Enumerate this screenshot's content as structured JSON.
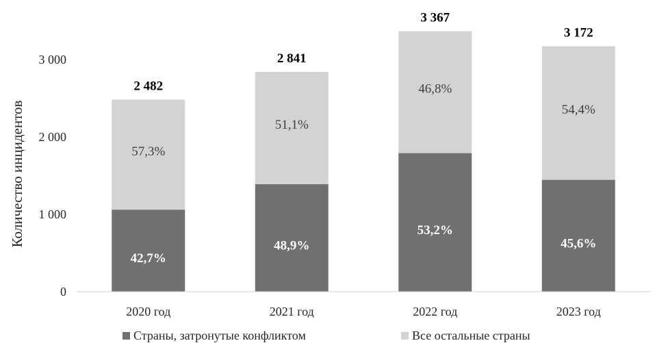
{
  "chart_data": {
    "type": "bar",
    "stacked": true,
    "title": "",
    "xlabel": "",
    "ylabel": "Количество инцидентов",
    "ylim": [
      0,
      3000
    ],
    "yticks": [
      {
        "value": 0,
        "label": "0"
      },
      {
        "value": 1000,
        "label": "1 000"
      },
      {
        "value": 2000,
        "label": "2 000"
      },
      {
        "value": 3000,
        "label": "3 000"
      }
    ],
    "categories": [
      "2020 год",
      "2021 год",
      "2022 год",
      "2023 год"
    ],
    "totals": [
      2482,
      2841,
      3367,
      3172
    ],
    "total_labels": [
      "2 482",
      "2 841",
      "3 367",
      "3 172"
    ],
    "series": [
      {
        "name": "Страны, затронутые конфликтом",
        "color": "#707070",
        "values": [
          1060,
          1389,
          1791,
          1446
        ],
        "labels": [
          "42,7%",
          "48,9%",
          "53,2%",
          "45,6%"
        ]
      },
      {
        "name": "Все остальные страны",
        "color": "#d3d3d3",
        "values": [
          1422,
          1452,
          1576,
          1726
        ],
        "labels": [
          "57,3%",
          "51,1%",
          "46,8%",
          "54,4%"
        ]
      }
    ],
    "grid": false,
    "legend": "bottom"
  }
}
